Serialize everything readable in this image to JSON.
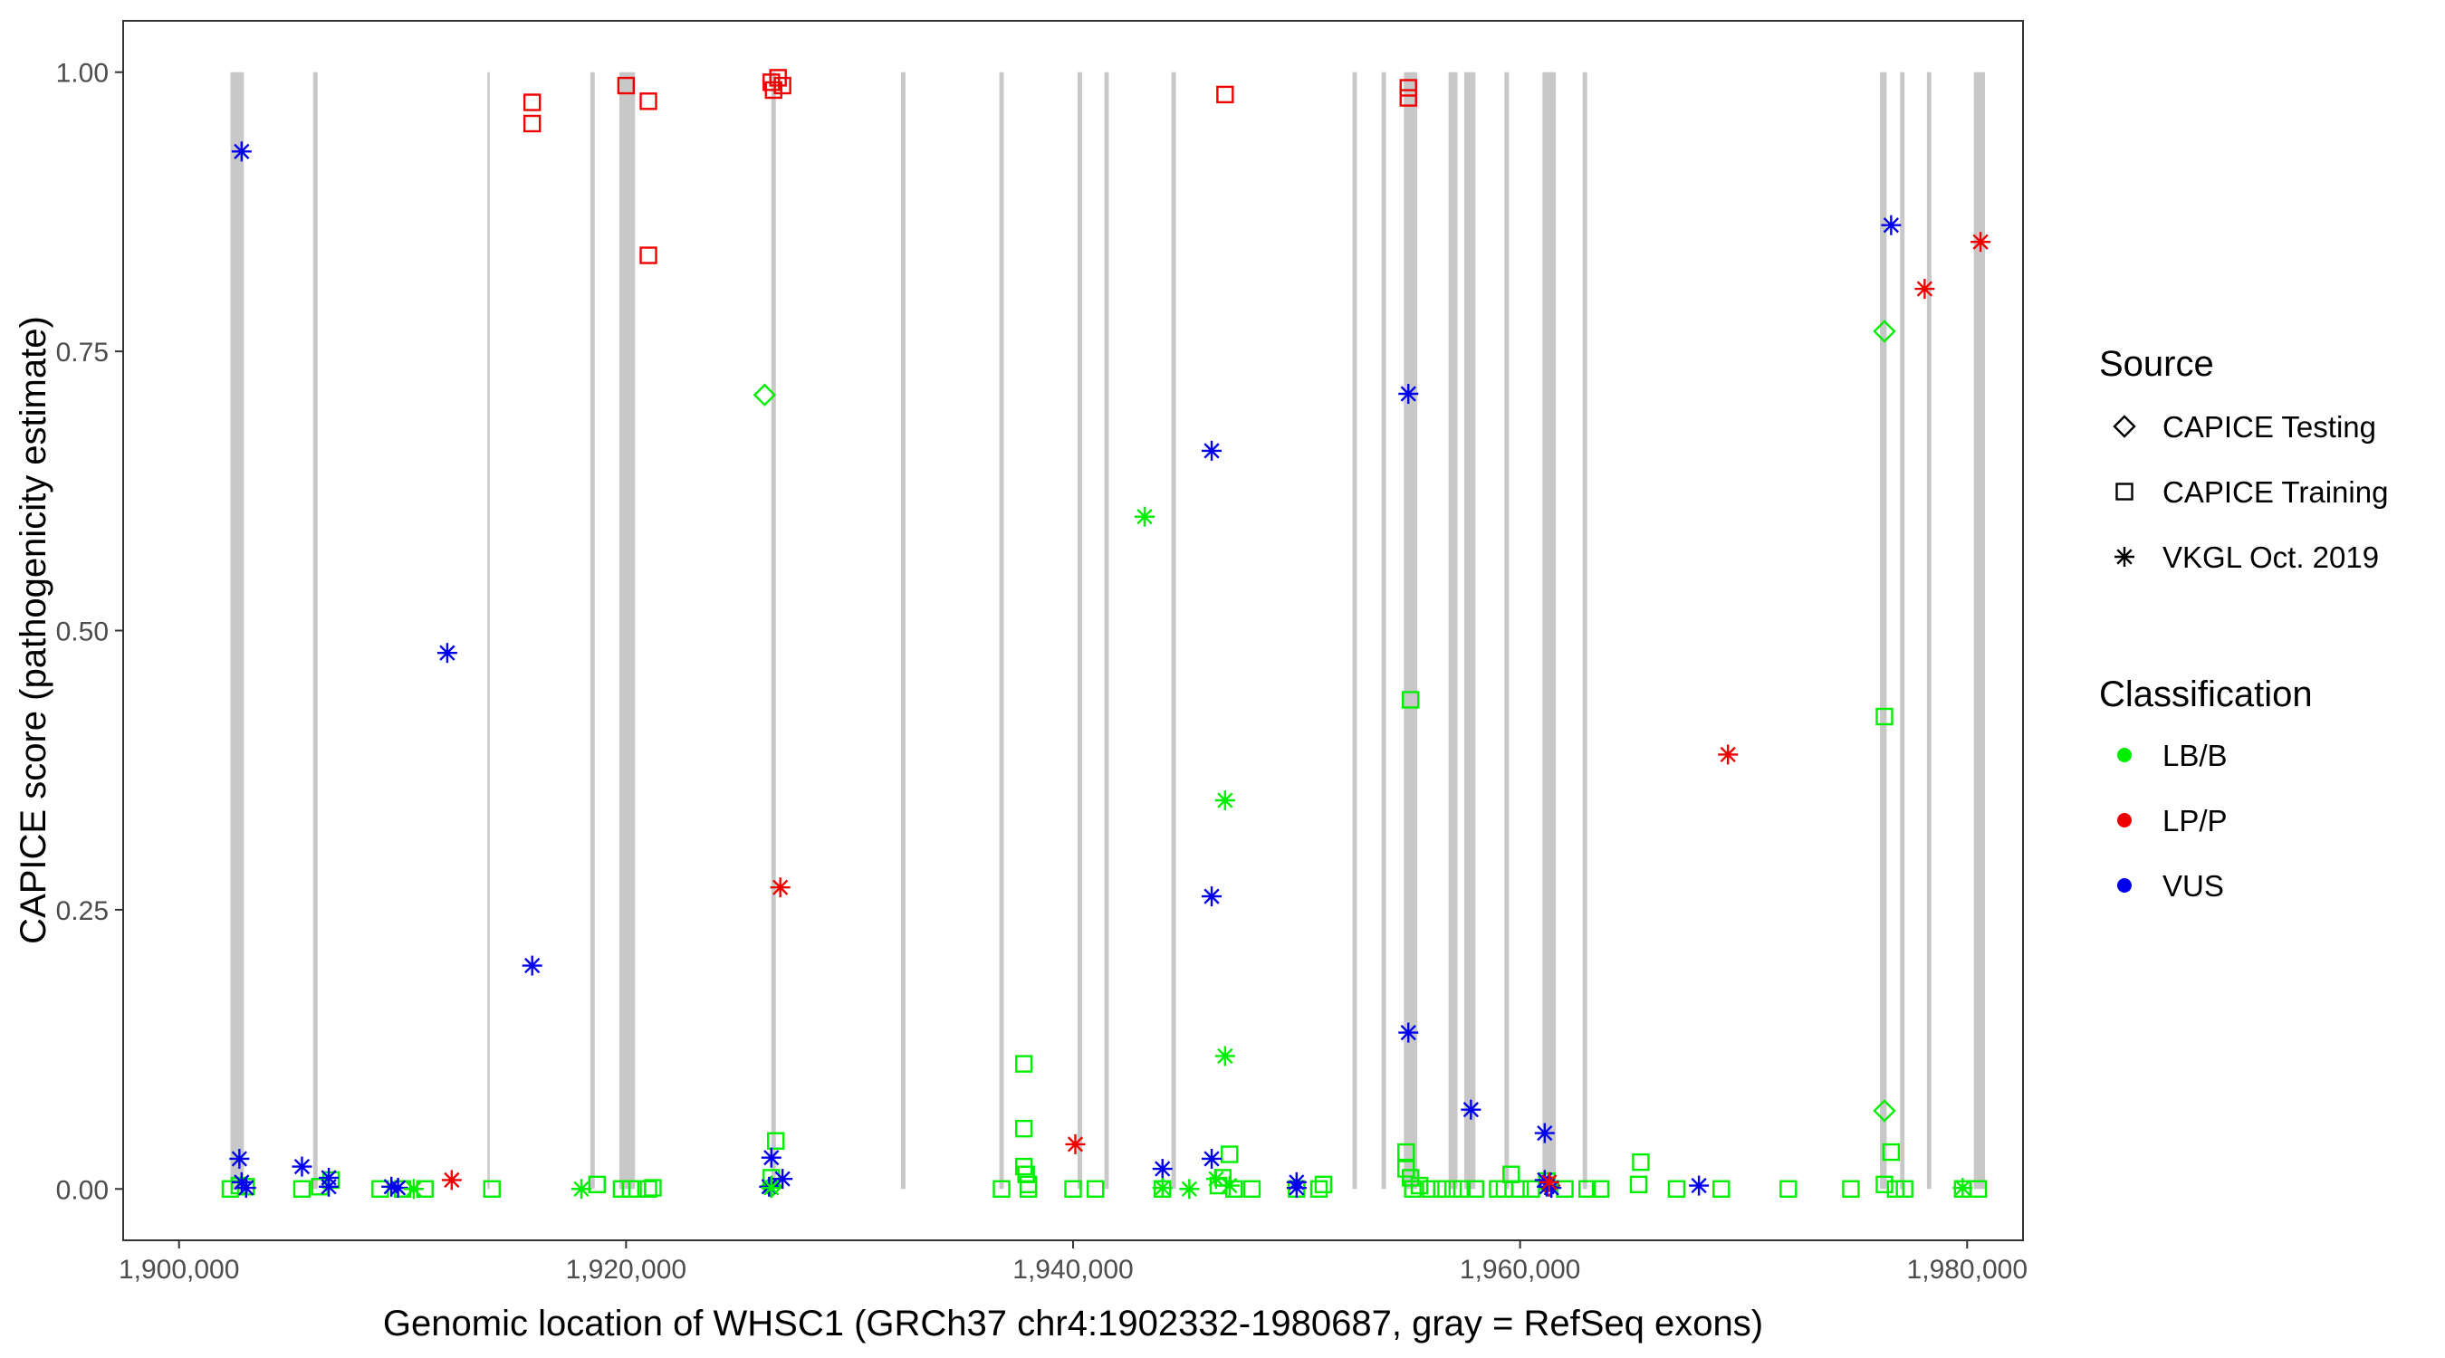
{
  "chart_data": {
    "type": "scatter",
    "title": "",
    "xlabel": "Genomic location of WHSC1 (GRCh37 chr4:1902332-1980687, gray = RefSeq exons)",
    "ylabel": "CAPICE score (pathogenicity estimate)",
    "xlim": [
      1897500,
      1982500
    ],
    "ylim": [
      -0.046,
      1.046
    ],
    "x_ticks": [
      1900000,
      1920000,
      1940000,
      1960000,
      1980000
    ],
    "x_tick_labels": [
      "1,900,000",
      "1,920,000",
      "1,940,000",
      "1,960,000",
      "1,980,000"
    ],
    "y_ticks": [
      0,
      0.25,
      0.5,
      0.75,
      1
    ],
    "y_tick_labels": [
      "0.00",
      "0.25",
      "0.50",
      "0.75",
      "1.00"
    ],
    "grid": false,
    "exon_color": "#c8c8c8",
    "exons": [
      [
        1902300,
        1902900
      ],
      [
        1906000,
        1906200
      ],
      [
        1913800,
        1913900
      ],
      [
        1918400,
        1918600
      ],
      [
        1919700,
        1920400
      ],
      [
        1926500,
        1926700
      ],
      [
        1932300,
        1932500
      ],
      [
        1936700,
        1936900
      ],
      [
        1940200,
        1940400
      ],
      [
        1941400,
        1941600
      ],
      [
        1944400,
        1944600
      ],
      [
        1952500,
        1952700
      ],
      [
        1953800,
        1954000
      ],
      [
        1954800,
        1955400
      ],
      [
        1956800,
        1957200
      ],
      [
        1957500,
        1958000
      ],
      [
        1959300,
        1959500
      ],
      [
        1961000,
        1961600
      ],
      [
        1962800,
        1963000
      ],
      [
        1976100,
        1976400
      ],
      [
        1977000,
        1977200
      ],
      [
        1978200,
        1978400
      ],
      [
        1980300,
        1980800
      ]
    ],
    "legend": {
      "position": "right",
      "source_title": "Source",
      "source_entries": [
        {
          "label": "CAPICE Testing",
          "shape": "diamond"
        },
        {
          "label": "CAPICE Training",
          "shape": "square"
        },
        {
          "label": "VKGL Oct. 2019",
          "shape": "asterisk"
        }
      ],
      "class_title": "Classification",
      "class_entries": [
        {
          "label": "LB/B",
          "color": "#00ee00"
        },
        {
          "label": "LP/P",
          "color": "#ee0000"
        },
        {
          "label": "VUS",
          "color": "#0000ee"
        }
      ]
    },
    "series": [
      {
        "source": "CAPICE Testing",
        "classification": "LB/B",
        "shape": "diamond",
        "color": "#00ee00",
        "points": [
          [
            1926200,
            0.711
          ],
          [
            1976300,
            0.768
          ],
          [
            1976300,
            0.07
          ],
          [
            1926500,
            0.002
          ]
        ]
      },
      {
        "source": "CAPICE Testing",
        "classification": "LP/P",
        "shape": "diamond",
        "color": "#ee0000",
        "points": [
          [
            1961300,
            0.003
          ]
        ]
      },
      {
        "source": "CAPICE Training",
        "classification": "LP/P",
        "shape": "square",
        "color": "#ee0000",
        "points": [
          [
            1915800,
            0.973
          ],
          [
            1915800,
            0.954
          ],
          [
            1920000,
            0.988
          ],
          [
            1921000,
            0.974
          ],
          [
            1921000,
            0.836
          ],
          [
            1926500,
            0.991
          ],
          [
            1926600,
            0.984
          ],
          [
            1926800,
            0.995
          ],
          [
            1927000,
            0.988
          ],
          [
            1946800,
            0.98
          ],
          [
            1955000,
            0.986
          ],
          [
            1955000,
            0.977
          ]
        ]
      },
      {
        "source": "CAPICE Training",
        "classification": "LB/B",
        "shape": "square",
        "color": "#00ee00",
        "points": [
          [
            1902300,
            0
          ],
          [
            1902700,
            0.003
          ],
          [
            1903000,
            0.002
          ],
          [
            1905500,
            0
          ],
          [
            1906300,
            0.002
          ],
          [
            1906800,
            0.008
          ],
          [
            1909000,
            0
          ],
          [
            1910000,
            0
          ],
          [
            1911000,
            0
          ],
          [
            1914000,
            0
          ],
          [
            1918700,
            0.004
          ],
          [
            1919800,
            0
          ],
          [
            1920200,
            0
          ],
          [
            1920500,
            0
          ],
          [
            1921000,
            0
          ],
          [
            1921200,
            0.001
          ],
          [
            1926500,
            0.01
          ],
          [
            1926700,
            0.043
          ],
          [
            1936800,
            0
          ],
          [
            1937800,
            0.112
          ],
          [
            1937800,
            0.054
          ],
          [
            1937800,
            0.02
          ],
          [
            1937900,
            0.013
          ],
          [
            1938000,
            0.004
          ],
          [
            1938000,
            0
          ],
          [
            1940000,
            0
          ],
          [
            1941000,
            0
          ],
          [
            1944000,
            0
          ],
          [
            1946500,
            0.003
          ],
          [
            1946700,
            0.01
          ],
          [
            1947000,
            0.031
          ],
          [
            1947200,
            0
          ],
          [
            1948000,
            0
          ],
          [
            1950000,
            0
          ],
          [
            1951000,
            0
          ],
          [
            1951200,
            0.004
          ],
          [
            1954900,
            0.033
          ],
          [
            1954900,
            0.018
          ],
          [
            1955100,
            0.438
          ],
          [
            1955100,
            0.01
          ],
          [
            1955200,
            0
          ],
          [
            1955500,
            0.003
          ],
          [
            1956000,
            0
          ],
          [
            1956500,
            0
          ],
          [
            1957000,
            0
          ],
          [
            1957400,
            0
          ],
          [
            1958000,
            0
          ],
          [
            1959000,
            0
          ],
          [
            1959300,
            0
          ],
          [
            1959600,
            0.013
          ],
          [
            1960000,
            0
          ],
          [
            1960500,
            0
          ],
          [
            1961200,
            0.007
          ],
          [
            1962000,
            0
          ],
          [
            1963000,
            0
          ],
          [
            1963600,
            0
          ],
          [
            1965300,
            0.004
          ],
          [
            1965400,
            0.024
          ],
          [
            1967000,
            0
          ],
          [
            1969000,
            0
          ],
          [
            1972000,
            0
          ],
          [
            1974800,
            0
          ],
          [
            1976300,
            0.423
          ],
          [
            1976300,
            0.004
          ],
          [
            1976600,
            0.033
          ],
          [
            1976800,
            0
          ],
          [
            1977200,
            0
          ],
          [
            1979800,
            0
          ],
          [
            1980500,
            0
          ]
        ]
      },
      {
        "source": "VKGL Oct. 2019",
        "classification": "VUS",
        "shape": "asterisk",
        "color": "#0000ee",
        "points": [
          [
            1902800,
            0.929
          ],
          [
            1902700,
            0.027
          ],
          [
            1902800,
            0.006
          ],
          [
            1903000,
            0.001
          ],
          [
            1905500,
            0.02
          ],
          [
            1906700,
            0.01
          ],
          [
            1906700,
            0.002
          ],
          [
            1909500,
            0.002
          ],
          [
            1909800,
            0.001
          ],
          [
            1912000,
            0.48
          ],
          [
            1915800,
            0.2
          ],
          [
            1926500,
            0.028
          ],
          [
            1927000,
            0.009
          ],
          [
            1926400,
            0.002
          ],
          [
            1944000,
            0.018
          ],
          [
            1946200,
            0.661
          ],
          [
            1946200,
            0.262
          ],
          [
            1946200,
            0.027
          ],
          [
            1950000,
            0.006
          ],
          [
            1950000,
            0.001
          ],
          [
            1955000,
            0.712
          ],
          [
            1955000,
            0.14
          ],
          [
            1957800,
            0.071
          ],
          [
            1961100,
            0.05
          ],
          [
            1961100,
            0.008
          ],
          [
            1961200,
            0.002
          ],
          [
            1961400,
            0.001
          ],
          [
            1968000,
            0.003
          ],
          [
            1976600,
            0.863
          ]
        ]
      },
      {
        "source": "VKGL Oct. 2019",
        "classification": "LP/P",
        "shape": "asterisk",
        "color": "#ee0000",
        "points": [
          [
            1912200,
            0.008
          ],
          [
            1926900,
            0.27
          ],
          [
            1940100,
            0.04
          ],
          [
            1961300,
            0.006
          ],
          [
            1969300,
            0.389
          ],
          [
            1978100,
            0.806
          ],
          [
            1980600,
            0.848
          ]
        ]
      },
      {
        "source": "VKGL Oct. 2019",
        "classification": "LB/B",
        "shape": "asterisk",
        "color": "#00ee00",
        "points": [
          [
            1910500,
            0
          ],
          [
            1918000,
            0
          ],
          [
            1926500,
            0.001
          ],
          [
            1943200,
            0.602
          ],
          [
            1944000,
            0.001
          ],
          [
            1945200,
            0
          ],
          [
            1946400,
            0.009
          ],
          [
            1946800,
            0.348
          ],
          [
            1946800,
            0.119
          ],
          [
            1947000,
            0.003
          ],
          [
            1979800,
            0.001
          ]
        ]
      }
    ]
  }
}
